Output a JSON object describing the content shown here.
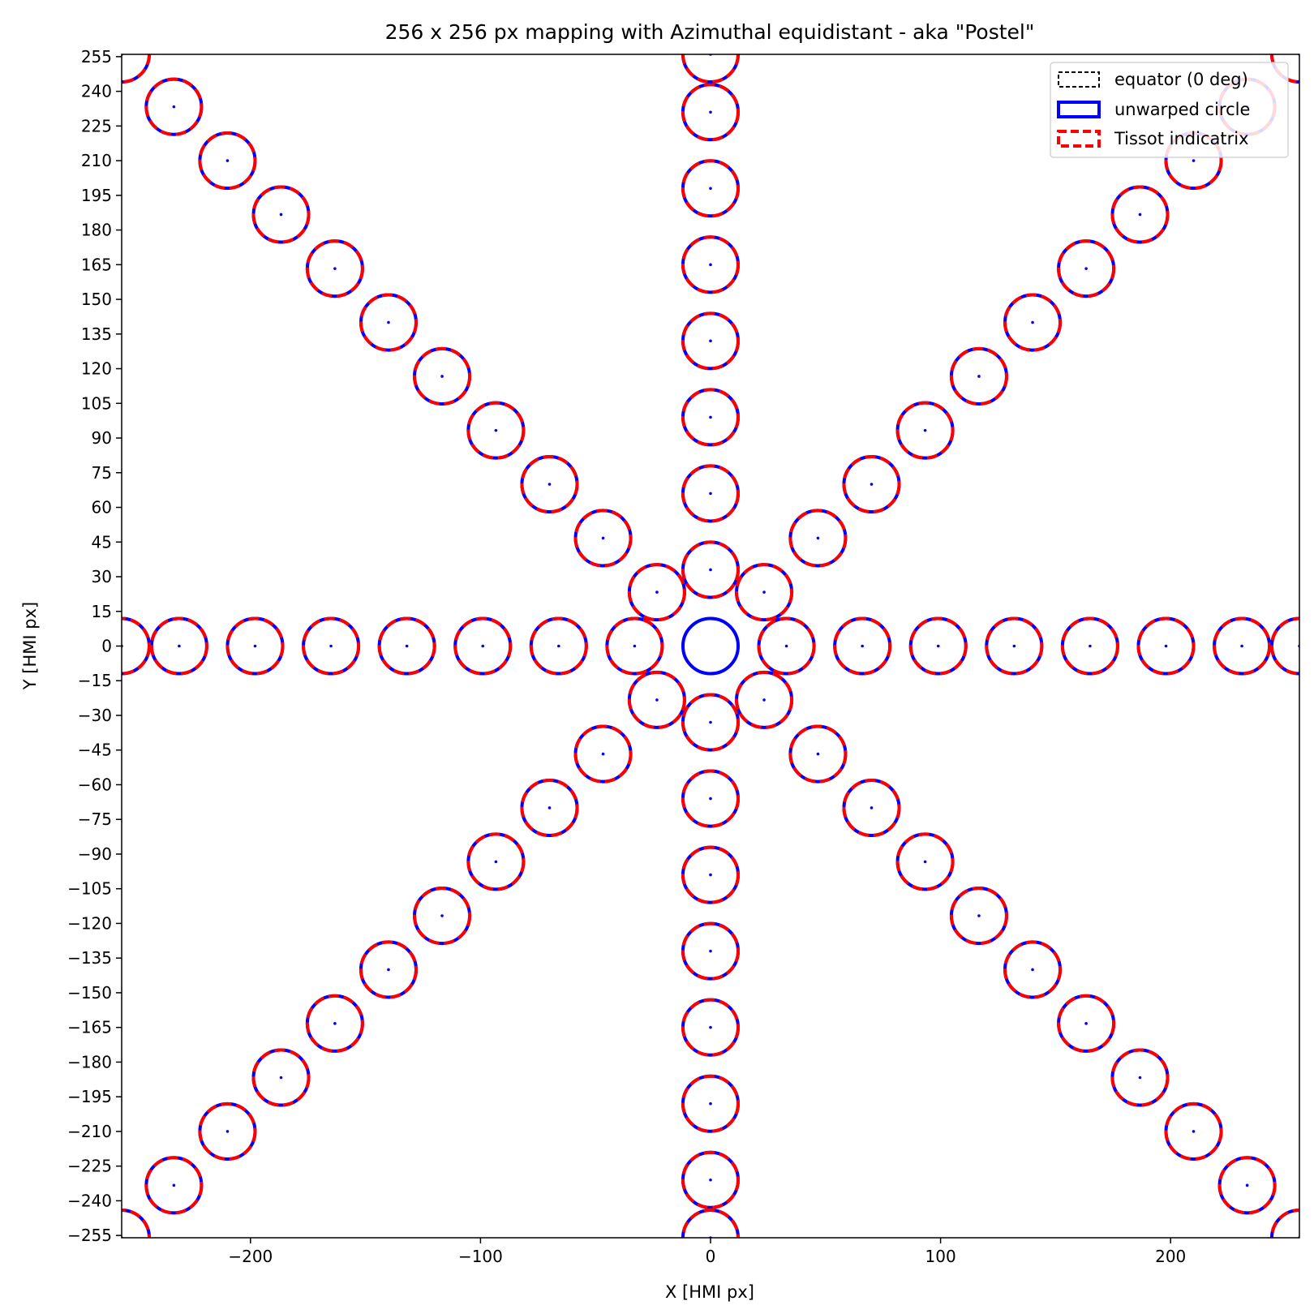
{
  "chart_data": {
    "type": "scatter",
    "title": "256 x 256 px mapping with Azimuthal equidistant - aka \"Postel\"",
    "xlabel": "X [HMI px]",
    "ylabel": "Y [HMI px]",
    "xlim": [
      -256,
      256
    ],
    "ylim": [
      -256,
      256
    ],
    "xticks": [
      -200,
      -100,
      0,
      100,
      200
    ],
    "xtick_labels": [
      "−200",
      "−100",
      "0",
      "100",
      "200"
    ],
    "yticks": [
      255,
      240,
      225,
      210,
      195,
      180,
      165,
      150,
      135,
      120,
      105,
      90,
      75,
      60,
      45,
      30,
      15,
      0,
      -15,
      -30,
      -45,
      -60,
      -75,
      -90,
      -105,
      -120,
      -135,
      -150,
      -165,
      -180,
      -195,
      -210,
      -225,
      -240,
      -255
    ],
    "ytick_labels": [
      "255",
      "240",
      "225",
      "210",
      "195",
      "180",
      "165",
      "150",
      "135",
      "120",
      "105",
      "90",
      "75",
      "60",
      "45",
      "30",
      "15",
      "0",
      "−15",
      "−30",
      "−45",
      "−60",
      "−75",
      "−90",
      "−105",
      "−120",
      "−135",
      "−150",
      "−165",
      "−180",
      "−195",
      "−210",
      "−225",
      "−240",
      "−255"
    ],
    "grid": false,
    "legend_position": "top-right",
    "series": [
      {
        "name": "equator (0 deg)",
        "style": "dashed",
        "color": "#000000"
      },
      {
        "name": "unwarped circle",
        "style": "solid",
        "color": "#0000ff"
      },
      {
        "name": "Tissot indicatrix",
        "style": "dashed",
        "color": "#ff0000"
      }
    ],
    "circle_radius": 12,
    "center_circle": {
      "x": 0,
      "y": 0
    },
    "circle_centers": [
      {
        "x": 33.0,
        "y": 0
      },
      {
        "x": 66.0,
        "y": 0
      },
      {
        "x": 99.0,
        "y": 0
      },
      {
        "x": 132.0,
        "y": 0
      },
      {
        "x": 165.0,
        "y": 0
      },
      {
        "x": 198.0,
        "y": 0
      },
      {
        "x": 231.0,
        "y": 0
      },
      {
        "x": 256.0,
        "y": 0
      },
      {
        "x": -33.0,
        "y": 0
      },
      {
        "x": -66.0,
        "y": 0
      },
      {
        "x": -99.0,
        "y": 0
      },
      {
        "x": -132.0,
        "y": 0
      },
      {
        "x": -165.0,
        "y": 0
      },
      {
        "x": -198.0,
        "y": 0
      },
      {
        "x": -231.0,
        "y": 0
      },
      {
        "x": -256.0,
        "y": 0
      },
      {
        "x": 0,
        "y": 33.0
      },
      {
        "x": 0,
        "y": 66.0
      },
      {
        "x": 0,
        "y": 99.0
      },
      {
        "x": 0,
        "y": 132.0
      },
      {
        "x": 0,
        "y": 165.0
      },
      {
        "x": 0,
        "y": 198.0
      },
      {
        "x": 0,
        "y": 231.0
      },
      {
        "x": 0,
        "y": 256.0
      },
      {
        "x": 0,
        "y": -33.0
      },
      {
        "x": 0,
        "y": -66.0
      },
      {
        "x": 0,
        "y": -99.0
      },
      {
        "x": 0,
        "y": -132.0
      },
      {
        "x": 0,
        "y": -165.0
      },
      {
        "x": 0,
        "y": -198.0
      },
      {
        "x": 0,
        "y": -231.0
      },
      {
        "x": 0,
        "y": -256.0
      },
      {
        "x": 23.3,
        "y": 23.3
      },
      {
        "x": 46.7,
        "y": 46.7
      },
      {
        "x": 70.0,
        "y": 70.0
      },
      {
        "x": 93.3,
        "y": 93.3
      },
      {
        "x": 116.7,
        "y": 116.7
      },
      {
        "x": 140.0,
        "y": 140.0
      },
      {
        "x": 163.3,
        "y": 163.3
      },
      {
        "x": 186.7,
        "y": 186.7
      },
      {
        "x": 210.0,
        "y": 210.0
      },
      {
        "x": 233.3,
        "y": 233.3
      },
      {
        "x": 256.0,
        "y": 256.0
      },
      {
        "x": -23.3,
        "y": 23.3
      },
      {
        "x": -46.7,
        "y": 46.7
      },
      {
        "x": -70.0,
        "y": 70.0
      },
      {
        "x": -93.3,
        "y": 93.3
      },
      {
        "x": -116.7,
        "y": 116.7
      },
      {
        "x": -140.0,
        "y": 140.0
      },
      {
        "x": -163.3,
        "y": 163.3
      },
      {
        "x": -186.7,
        "y": 186.7
      },
      {
        "x": -210.0,
        "y": 210.0
      },
      {
        "x": -233.3,
        "y": 233.3
      },
      {
        "x": -256.0,
        "y": 256.0
      },
      {
        "x": 23.3,
        "y": -23.3
      },
      {
        "x": 46.7,
        "y": -46.7
      },
      {
        "x": 70.0,
        "y": -70.0
      },
      {
        "x": 93.3,
        "y": -93.3
      },
      {
        "x": 116.7,
        "y": -116.7
      },
      {
        "x": 140.0,
        "y": -140.0
      },
      {
        "x": 163.3,
        "y": -163.3
      },
      {
        "x": 186.7,
        "y": -186.7
      },
      {
        "x": 210.0,
        "y": -210.0
      },
      {
        "x": 233.3,
        "y": -233.3
      },
      {
        "x": 256.0,
        "y": -256.0
      },
      {
        "x": -23.3,
        "y": -23.3
      },
      {
        "x": -46.7,
        "y": -46.7
      },
      {
        "x": -70.0,
        "y": -70.0
      },
      {
        "x": -93.3,
        "y": -93.3
      },
      {
        "x": -116.7,
        "y": -116.7
      },
      {
        "x": -140.0,
        "y": -140.0
      },
      {
        "x": -163.3,
        "y": -163.3
      },
      {
        "x": -186.7,
        "y": -186.7
      },
      {
        "x": -210.0,
        "y": -210.0
      },
      {
        "x": -233.3,
        "y": -233.3
      },
      {
        "x": -256.0,
        "y": -256.0
      }
    ]
  }
}
